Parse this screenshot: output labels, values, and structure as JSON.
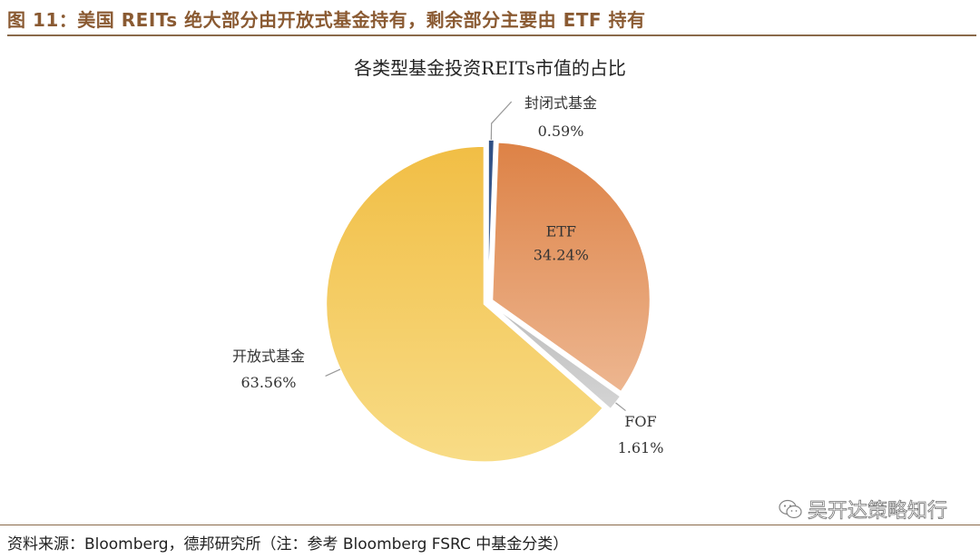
{
  "figure": {
    "title": "图 11：美国 REITs 绝大部分由开放式基金持有，剩余部分主要由 ETF 持有"
  },
  "chart_data": {
    "type": "pie",
    "title": "各类型基金投资REITs市值的占比",
    "start_angle_deg": 0,
    "direction": "clockwise",
    "slices": [
      {
        "label": "封闭式基金",
        "value": 0.59,
        "value_label": "0.59%",
        "color": "#3c5a8a"
      },
      {
        "label": "ETF",
        "value": 34.24,
        "value_label": "34.24%",
        "color": "#e39a63"
      },
      {
        "label": "FOF",
        "value": 1.61,
        "value_label": "1.61%",
        "color": "#c8c8c8"
      },
      {
        "label": "开放式基金",
        "value": 63.56,
        "value_label": "63.56%",
        "color": "#f3c95e"
      }
    ]
  },
  "footer": {
    "source": "资料来源：Bloomberg，德邦研究所（注：参考 Bloomberg FSRC 中基金分类）"
  },
  "watermark": {
    "text": "吴开达策略知行",
    "icon": "wechat-icon"
  }
}
